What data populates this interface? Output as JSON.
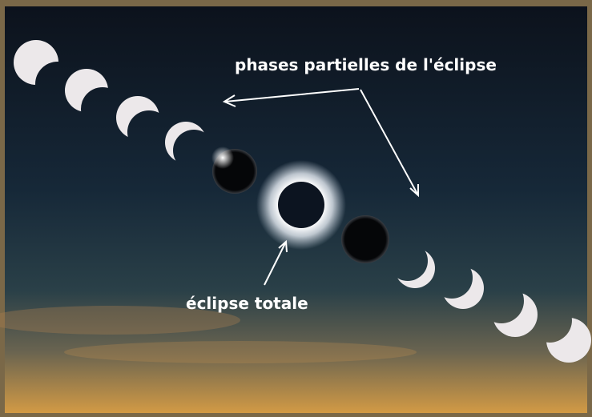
{
  "annotations": {
    "partial_phases": "phases partielles de l'éclipse",
    "total_eclipse": "éclipse totale"
  }
}
